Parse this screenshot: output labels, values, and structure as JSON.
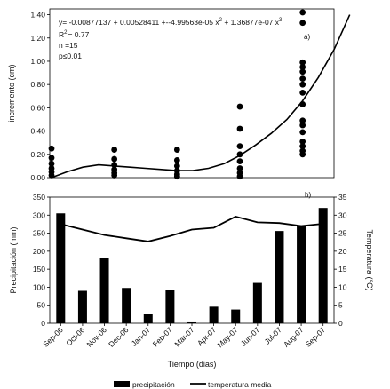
{
  "chart_data": [
    {
      "type": "scatter",
      "panel_label": "a)",
      "ylabel": "incremento (cm)",
      "ylim": [
        0,
        1.45
      ],
      "yticks": [
        "0.00",
        "0.20",
        "0.40",
        "0.60",
        "0.80",
        "1.00",
        "1.20",
        "1.40"
      ],
      "annotation": {
        "equation": "y= -0.00877137 + 0.00528411 +--4.99563e-05 x",
        "eq_part2": " + 1.36877e-07 x",
        "sup": "2",
        "sup2": "3",
        "r2_label": "R",
        "r2_sup": "2",
        "r2_value": "= 0.77",
        "n": "n =15",
        "p": "p≤0.01"
      },
      "points": [
        {
          "month": 0,
          "values": [
            0.25,
            0.17,
            0.12,
            0.08,
            0.05,
            0.02
          ]
        },
        {
          "month": 2,
          "values": [
            0.24,
            0.16,
            0.11,
            0.07,
            0.04,
            0.02
          ]
        },
        {
          "month": 4,
          "values": [
            0.24,
            0.15,
            0.1,
            0.06,
            0.03,
            0.01
          ]
        },
        {
          "month": 6,
          "values": [
            0.61,
            0.42,
            0.27,
            0.2,
            0.14,
            0.08,
            0.04,
            0.01
          ]
        },
        {
          "month": 8,
          "values": [
            1.42,
            1.33,
            0.99,
            0.95,
            0.91,
            0.85,
            0.8,
            0.73,
            0.63,
            0.49,
            0.45,
            0.39,
            0.31,
            0.27,
            0.23,
            0.2
          ]
        }
      ],
      "fit_curve": {
        "x": [
          0,
          0.5,
          1,
          1.5,
          2,
          2.5,
          3,
          3.5,
          4,
          4.5,
          5,
          5.5,
          6,
          6.5,
          7,
          7.5,
          8,
          8.5,
          9,
          9.5
        ],
        "y": [
          0.0,
          0.05,
          0.09,
          0.11,
          0.1,
          0.09,
          0.08,
          0.07,
          0.06,
          0.06,
          0.08,
          0.12,
          0.19,
          0.28,
          0.38,
          0.5,
          0.66,
          0.86,
          1.1,
          1.4
        ]
      }
    },
    {
      "type": "bar+line",
      "panel_label": "b)",
      "xlabel": "Tiempo (dias)",
      "ylabel_left": "Precipitación (mm)",
      "ylabel_right": "Temperatura (°C)",
      "ylim_left": [
        0,
        350
      ],
      "ylim_right": [
        0,
        35
      ],
      "yticks_left": [
        "0",
        "50",
        "100",
        "150",
        "200",
        "250",
        "300",
        "350"
      ],
      "yticks_right": [
        "0",
        "5",
        "10",
        "15",
        "20",
        "25",
        "30",
        "35"
      ],
      "categories": [
        "Sep-06",
        "Oct-06",
        "Nov-06",
        "Dec-06",
        "Jan-07",
        "Feb-07",
        "Mar-07",
        "Apr-07",
        "May-07",
        "Jun-07",
        "Jul-07",
        "Aug-07",
        "Sep-07"
      ],
      "series": [
        {
          "name": "precipitación",
          "kind": "bar",
          "axis": "left",
          "values": [
            305,
            90,
            180,
            98,
            27,
            93,
            5,
            46,
            38,
            112,
            256,
            270,
            320
          ]
        },
        {
          "name": "temperatura media",
          "kind": "line",
          "axis": "right",
          "values": [
            27.5,
            26.0,
            24.5,
            23.6,
            22.7,
            24.2,
            26.0,
            26.5,
            29.6,
            28.0,
            27.8,
            27.0,
            27.6
          ]
        }
      ]
    }
  ]
}
